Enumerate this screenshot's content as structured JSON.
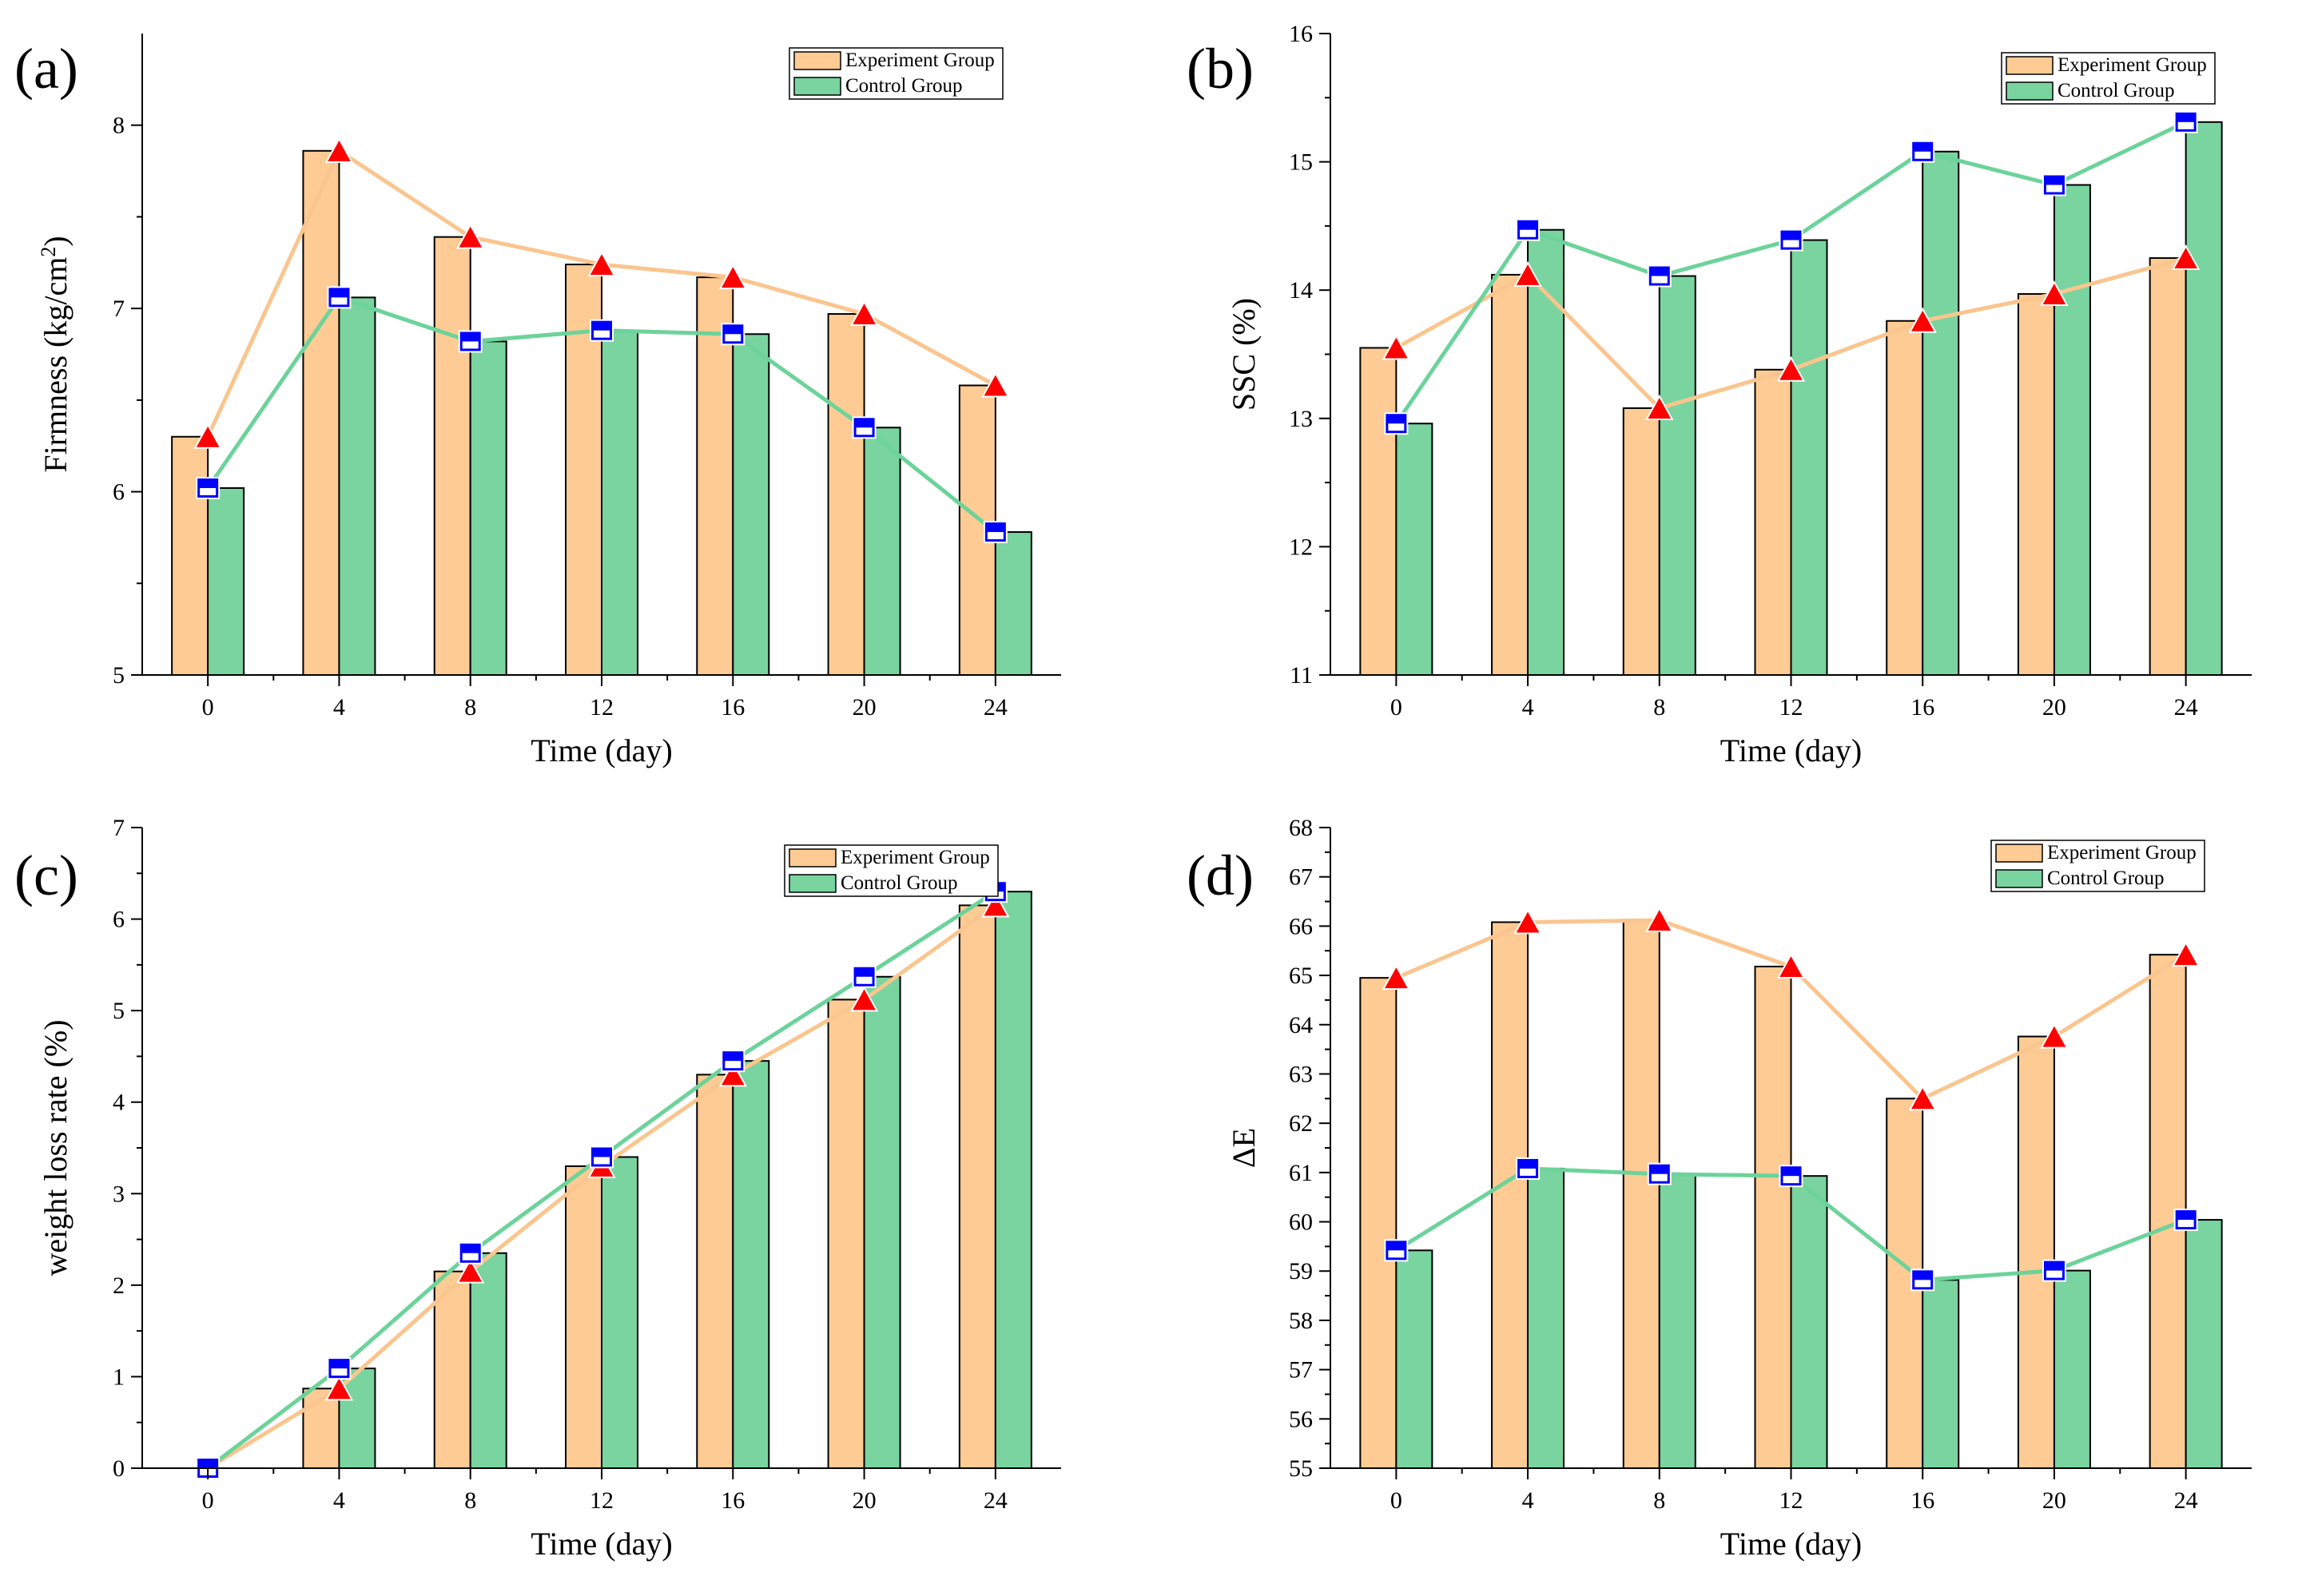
{
  "colors": {
    "experiment_bar": "#FDCB93",
    "control_bar": "#79D4A0",
    "experiment_line": "#FAC58E",
    "control_line": "#6CD39A",
    "triangle_marker": "#FF0000",
    "square_marker": "#0000FF"
  },
  "chart_data": [
    {
      "type": "bar",
      "panel_label": "(a)",
      "xlabel": "Time (day)",
      "ylabel": "Firmness (kg/cm",
      "ylabel_sup": "2",
      "ylabel_end": ")",
      "categories": [
        "0",
        "4",
        "8",
        "12",
        "16",
        "20",
        "24"
      ],
      "ylim": [
        5,
        8.5
      ],
      "yticks": [
        5,
        6,
        7,
        8
      ],
      "ytick_labels": [
        "5",
        "6",
        "7",
        "8"
      ],
      "legend_position": "top-right",
      "series": [
        {
          "name": "Experiment Group",
          "values": [
            6.3,
            7.86,
            7.39,
            7.24,
            7.17,
            6.97,
            6.58
          ]
        },
        {
          "name": "Control Group",
          "values": [
            6.02,
            7.06,
            6.82,
            6.88,
            6.86,
            6.35,
            5.78
          ]
        }
      ]
    },
    {
      "type": "bar",
      "panel_label": "(b)",
      "xlabel": "Time (day)",
      "ylabel": "SSC (%)",
      "ylabel_sup": "",
      "ylabel_end": "",
      "categories": [
        "0",
        "4",
        "8",
        "12",
        "16",
        "20",
        "24"
      ],
      "ylim": [
        11,
        16
      ],
      "yticks": [
        11,
        12,
        13,
        14,
        15,
        16
      ],
      "ytick_labels": [
        "11",
        "12",
        "13",
        "14",
        "15",
        "16"
      ],
      "legend_position": "top-right",
      "series": [
        {
          "name": "Experiment Group",
          "values": [
            13.55,
            14.12,
            13.08,
            13.38,
            13.76,
            13.97,
            14.25
          ]
        },
        {
          "name": "Control Group",
          "values": [
            12.96,
            14.47,
            14.11,
            14.39,
            15.08,
            14.82,
            15.31
          ]
        }
      ]
    },
    {
      "type": "bar",
      "panel_label": "(c)",
      "xlabel": "Time (day)",
      "ylabel": "weight loss rate (%)",
      "ylabel_sup": "",
      "ylabel_end": "",
      "categories": [
        "0",
        "4",
        "8",
        "12",
        "16",
        "20",
        "24"
      ],
      "ylim": [
        0,
        7
      ],
      "yticks": [
        0,
        1,
        2,
        3,
        4,
        5,
        6,
        7
      ],
      "ytick_labels": [
        "0",
        "1",
        "2",
        "3",
        "4",
        "5",
        "6",
        "7"
      ],
      "legend_position": "top-right",
      "series": [
        {
          "name": "Experiment Group",
          "values": [
            0.0,
            0.87,
            2.15,
            3.3,
            4.3,
            5.12,
            6.15
          ]
        },
        {
          "name": "Control Group",
          "values": [
            0.0,
            1.09,
            2.35,
            3.4,
            4.45,
            5.37,
            6.3
          ]
        }
      ]
    },
    {
      "type": "bar",
      "panel_label": "(d)",
      "xlabel": "Time (day)",
      "ylabel": "ΔE",
      "ylabel_sup": "",
      "ylabel_end": "",
      "categories": [
        "0",
        "4",
        "8",
        "12",
        "16",
        "20",
        "24"
      ],
      "ylim": [
        55,
        68
      ],
      "yticks": [
        55,
        56,
        57,
        58,
        59,
        60,
        61,
        62,
        63,
        64,
        65,
        66,
        67,
        68
      ],
      "ytick_labels": [
        "55",
        "56",
        "57",
        "58",
        "59",
        "60",
        "61",
        "62",
        "63",
        "64",
        "65",
        "66",
        "67",
        "68"
      ],
      "legend_position": "top-right",
      "series": [
        {
          "name": "Experiment Group",
          "values": [
            64.95,
            66.08,
            66.12,
            65.18,
            62.5,
            63.76,
            65.42
          ]
        },
        {
          "name": "Control Group",
          "values": [
            59.42,
            61.08,
            60.97,
            60.93,
            58.82,
            59.01,
            60.04
          ]
        }
      ]
    }
  ]
}
